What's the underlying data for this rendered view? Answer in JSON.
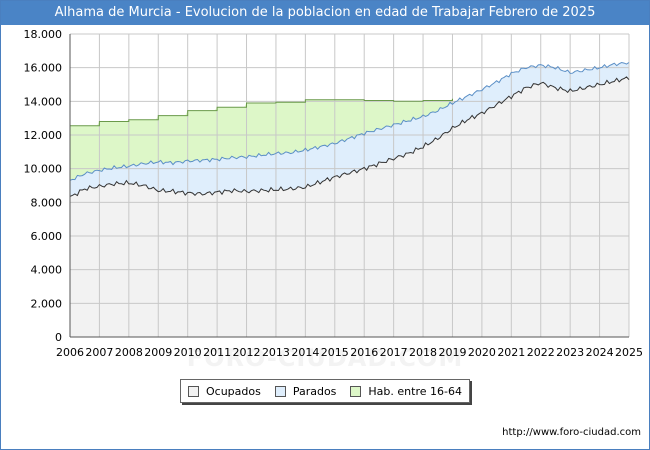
{
  "title": "Alhama de Murcia - Evolucion de la poblacion en edad de Trabajar Febrero de 2025",
  "watermark": "FORO-CIUDAD.COM",
  "source_url": "http://www.foro-ciudad.com",
  "colors": {
    "title_bg": "#4a84c6",
    "hab_fill": "#ddf7c8",
    "hab_line": "#6a9a4a",
    "parados_fill": "#dfeefc",
    "parados_line": "#5b8fc6",
    "ocupados_fill": "#f2f2f2",
    "ocupados_line": "#333333"
  },
  "legend": [
    {
      "label": "Ocupados",
      "color": "#f2f2f2"
    },
    {
      "label": "Parados",
      "color": "#dfeefc"
    },
    {
      "label": "Hab. entre 16-64",
      "color": "#ddf7c8"
    }
  ],
  "chart_data": {
    "type": "area",
    "x_tick_labels": [
      "2006",
      "2007",
      "2008",
      "2009",
      "2010",
      "2011",
      "2012",
      "2013",
      "2014",
      "2015",
      "2016",
      "2017",
      "2018",
      "2019",
      "2020",
      "2021",
      "2022",
      "2023",
      "2024",
      "2025"
    ],
    "y_tick_labels": [
      "0",
      "2.000",
      "4.000",
      "6.000",
      "8.000",
      "10.000",
      "12.000",
      "14.000",
      "16.000",
      "18.000"
    ],
    "ylim": [
      0,
      18000
    ],
    "xlim": [
      2006,
      2025
    ],
    "grid": true,
    "series": [
      {
        "name": "Hab. entre 16-64",
        "x": [
          2006,
          2007,
          2008,
          2009,
          2010,
          2011,
          2012,
          2013,
          2014,
          2015,
          2016,
          2017,
          2018,
          2019
        ],
        "values": [
          12550,
          12800,
          12900,
          13150,
          13450,
          13650,
          13900,
          13950,
          14100,
          14100,
          14050,
          14000,
          14050,
          14150
        ]
      },
      {
        "name": "Parados",
        "x": [
          2006,
          2006.5,
          2007,
          2007.5,
          2008,
          2008.5,
          2009,
          2009.5,
          2010,
          2010.5,
          2011,
          2011.5,
          2012,
          2012.5,
          2013,
          2013.5,
          2014,
          2014.5,
          2015,
          2015.5,
          2016,
          2016.5,
          2017,
          2017.5,
          2018,
          2018.5,
          2019,
          2019.5,
          2020,
          2020.5,
          2021,
          2021.5,
          2022,
          2022.5,
          2023,
          2023.5,
          2024,
          2024.5,
          2025
        ],
        "values": [
          9300,
          9700,
          9900,
          10050,
          10150,
          10300,
          10400,
          10350,
          10450,
          10500,
          10550,
          10650,
          10700,
          10800,
          10900,
          10950,
          11100,
          11300,
          11500,
          11800,
          12100,
          12350,
          12600,
          12850,
          13100,
          13450,
          13900,
          14300,
          14700,
          15150,
          15650,
          16000,
          16150,
          16000,
          15700,
          15850,
          16000,
          16200,
          16300
        ]
      },
      {
        "name": "Ocupados",
        "x": [
          2006,
          2006.5,
          2007,
          2007.5,
          2008,
          2008.5,
          2009,
          2009.5,
          2010,
          2010.5,
          2011,
          2011.5,
          2012,
          2012.5,
          2013,
          2013.5,
          2014,
          2014.5,
          2015,
          2015.5,
          2016,
          2016.5,
          2017,
          2017.5,
          2018,
          2018.5,
          2019,
          2019.5,
          2020,
          2020.5,
          2021,
          2021.5,
          2022,
          2022.5,
          2023,
          2023.5,
          2024,
          2024.5,
          2025
        ],
        "values": [
          8300,
          8800,
          8950,
          9100,
          9150,
          9000,
          8700,
          8650,
          8550,
          8500,
          8600,
          8700,
          8650,
          8700,
          8750,
          8800,
          8900,
          9200,
          9500,
          9750,
          10000,
          10300,
          10600,
          10900,
          11300,
          11800,
          12400,
          12900,
          13300,
          13800,
          14300,
          14800,
          15100,
          14800,
          14600,
          14800,
          15000,
          15200,
          15400
        ]
      }
    ]
  }
}
